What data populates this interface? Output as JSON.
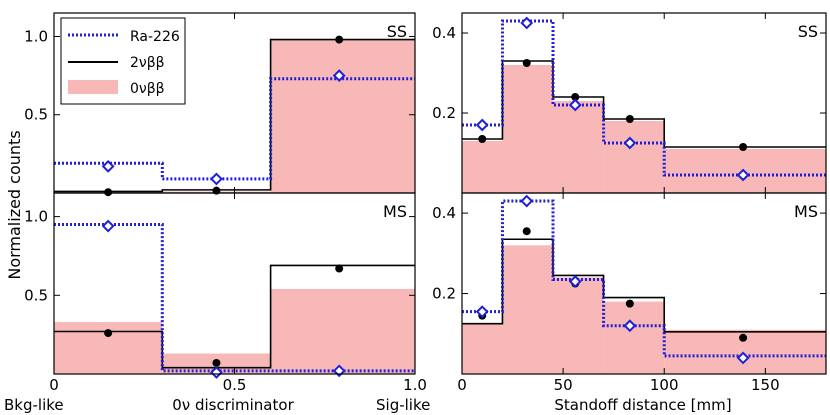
{
  "colors": {
    "ra226": "#1f1fd6",
    "two_nu": "#000000",
    "zero_nu_fill": "#f8b8b8",
    "zero_nu_edge": "#e07070",
    "frame": "#000000"
  },
  "chart_data": [
    {
      "id": "disc-ss",
      "type": "histogram",
      "panel_label": "SS",
      "x_edges": [
        0,
        0.3,
        0.6,
        1.0
      ],
      "xlim": [
        0,
        1.0
      ],
      "ylim": [
        0,
        1.15
      ],
      "yticks": [
        0.5,
        1.0
      ],
      "ytick_labels": [
        "0.5",
        "1.0"
      ],
      "show_x_tick_labels": false,
      "series": [
        {
          "name": "0νββ",
          "kind": "fill",
          "values": [
            0.01,
            0.01,
            0.98
          ]
        },
        {
          "name": "2νββ",
          "kind": "step",
          "values": [
            0.01,
            0.02,
            0.98
          ],
          "points": [
            0.005,
            0.015,
            0.98
          ]
        },
        {
          "name": "Ra-226",
          "kind": "dotted",
          "values": [
            0.19,
            0.09,
            0.73
          ],
          "points": [
            0.17,
            0.09,
            0.75
          ]
        }
      ],
      "point_x": [
        0.15,
        0.45,
        0.79
      ]
    },
    {
      "id": "disc-ms",
      "type": "histogram",
      "panel_label": "MS",
      "x_edges": [
        0,
        0.3,
        0.6,
        1.0
      ],
      "xlim": [
        0,
        1.0
      ],
      "ylim": [
        0,
        1.15
      ],
      "yticks": [
        0.5,
        1.0
      ],
      "ytick_labels": [
        "0.5",
        "1.0"
      ],
      "show_x_tick_labels": true,
      "xticks": [
        0,
        0.5,
        1.0
      ],
      "xtick_labels": [
        "0",
        "0.5",
        "1.0"
      ],
      "series": [
        {
          "name": "0νββ",
          "kind": "fill",
          "values": [
            0.33,
            0.13,
            0.54
          ]
        },
        {
          "name": "2νββ",
          "kind": "step",
          "values": [
            0.27,
            0.04,
            0.69
          ],
          "points": [
            0.26,
            0.07,
            0.67
          ]
        },
        {
          "name": "Ra-226",
          "kind": "dotted",
          "values": [
            0.95,
            0.02,
            0.02
          ],
          "points": [
            0.94,
            0.01,
            0.02
          ]
        }
      ],
      "point_x": [
        0.15,
        0.45,
        0.79
      ]
    },
    {
      "id": "stand-ss",
      "type": "histogram",
      "panel_label": "SS",
      "x_edges": [
        0,
        20,
        45,
        70,
        100,
        180
      ],
      "xlim": [
        0,
        180
      ],
      "ylim": [
        0,
        0.45
      ],
      "yticks": [
        0.2,
        0.4
      ],
      "ytick_labels": [
        "0.2",
        "0.4"
      ],
      "show_x_tick_labels": false,
      "series": [
        {
          "name": "0νββ",
          "kind": "fill",
          "values": [
            0.13,
            0.32,
            0.23,
            0.18,
            0.11
          ]
        },
        {
          "name": "2νββ",
          "kind": "step",
          "values": [
            0.135,
            0.33,
            0.24,
            0.185,
            0.115
          ],
          "points": [
            0.135,
            0.325,
            0.24,
            0.185,
            0.115
          ]
        },
        {
          "name": "Ra-226",
          "kind": "dotted",
          "values": [
            0.17,
            0.43,
            0.22,
            0.125,
            0.045
          ],
          "points": [
            0.17,
            0.425,
            0.22,
            0.125,
            0.045
          ]
        }
      ],
      "point_x": [
        10,
        32,
        56,
        83,
        139
      ]
    },
    {
      "id": "stand-ms",
      "type": "histogram",
      "panel_label": "MS",
      "x_edges": [
        0,
        20,
        45,
        70,
        100,
        180
      ],
      "xlim": [
        0,
        180
      ],
      "ylim": [
        0,
        0.45
      ],
      "yticks": [
        0.2,
        0.4
      ],
      "ytick_labels": [
        "0.2",
        "0.4"
      ],
      "show_x_tick_labels": true,
      "xticks": [
        0,
        50,
        100,
        150
      ],
      "xtick_labels": [
        "0",
        "50",
        "100",
        "150"
      ],
      "series": [
        {
          "name": "0νββ",
          "kind": "fill",
          "values": [
            0.125,
            0.32,
            0.24,
            0.18,
            0.11
          ]
        },
        {
          "name": "2νββ",
          "kind": "step",
          "values": [
            0.125,
            0.335,
            0.245,
            0.19,
            0.105
          ],
          "points": [
            0.145,
            0.355,
            0.225,
            0.175,
            0.09
          ]
        },
        {
          "name": "Ra-226",
          "kind": "dotted",
          "values": [
            0.155,
            0.43,
            0.235,
            0.12,
            0.045
          ],
          "points": [
            0.155,
            0.43,
            0.23,
            0.12,
            0.04
          ]
        }
      ],
      "point_x": [
        10,
        32,
        56,
        83,
        139
      ]
    }
  ],
  "legend": {
    "items": [
      {
        "label": "Ra-226",
        "style": "dotted"
      },
      {
        "label": "2νββ",
        "style": "line"
      },
      {
        "label": "0νββ",
        "style": "fill"
      }
    ]
  },
  "labels": {
    "ylabel": "Normalized counts",
    "left_xlabel": "0ν discriminator",
    "left_x_low": "Bkg-like",
    "left_x_high": "Sig-like",
    "right_xlabel": "Standoff distance [mm]"
  }
}
